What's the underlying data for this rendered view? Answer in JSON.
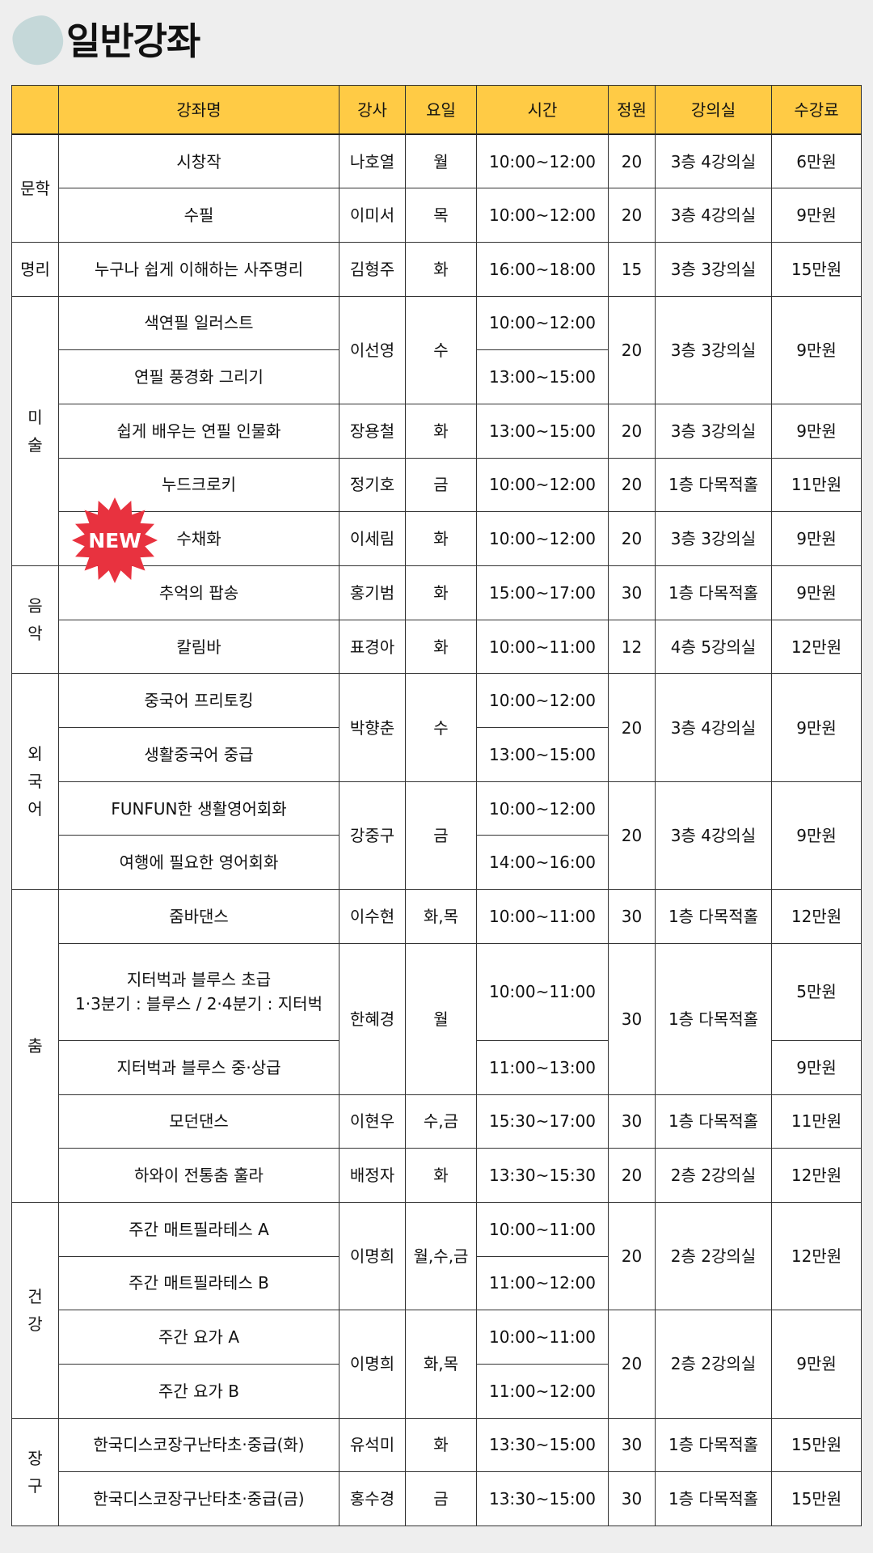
{
  "page": {
    "title": "일반강좌",
    "title_blob_color": "#c5d8d9",
    "header_color": "#ffcb45"
  },
  "badge": {
    "label": "NEW",
    "color": "#e8323f",
    "icon": "starburst-new-badge"
  },
  "table": {
    "headers": [
      "",
      "강좌명",
      "강사",
      "요일",
      "시간",
      "정원",
      "강의실",
      "수강료"
    ],
    "rows": [
      {
        "cells": [
          {
            "text": "문학",
            "rowspan": 2,
            "cat": true
          },
          {
            "text": "시창작"
          },
          {
            "text": "나호열"
          },
          {
            "text": "월"
          },
          {
            "text": "10:00~12:00"
          },
          {
            "text": "20"
          },
          {
            "text": "3층 4강의실"
          },
          {
            "text": "6만원"
          }
        ]
      },
      {
        "cells": [
          {
            "text": "수필"
          },
          {
            "text": "이미서"
          },
          {
            "text": "목"
          },
          {
            "text": "10:00~12:00"
          },
          {
            "text": "20"
          },
          {
            "text": "3층 4강의실"
          },
          {
            "text": "9만원"
          }
        ]
      },
      {
        "cells": [
          {
            "text": "명리",
            "cat": true
          },
          {
            "text": "누구나 쉽게 이해하는 사주명리"
          },
          {
            "text": "김형주"
          },
          {
            "text": "화"
          },
          {
            "text": "16:00~18:00"
          },
          {
            "text": "15"
          },
          {
            "text": "3층 3강의실"
          },
          {
            "text": "15만원"
          }
        ]
      },
      {
        "cells": [
          {
            "text": "미\n술",
            "rowspan": 5,
            "cat": true
          },
          {
            "text": "색연필 일러스트"
          },
          {
            "text": "이선영",
            "rowspan": 2
          },
          {
            "text": "수",
            "rowspan": 2
          },
          {
            "text": "10:00~12:00"
          },
          {
            "text": "20",
            "rowspan": 2
          },
          {
            "text": "3층 3강의실",
            "rowspan": 2
          },
          {
            "text": "9만원",
            "rowspan": 2
          }
        ]
      },
      {
        "cells": [
          {
            "text": "연필 풍경화 그리기"
          },
          {
            "text": "13:00~15:00"
          }
        ]
      },
      {
        "cells": [
          {
            "text": "쉽게 배우는 연필 인물화"
          },
          {
            "text": "장용철"
          },
          {
            "text": "화"
          },
          {
            "text": "13:00~15:00"
          },
          {
            "text": "20"
          },
          {
            "text": "3층 3강의실"
          },
          {
            "text": "9만원"
          }
        ]
      },
      {
        "cells": [
          {
            "text": "누드크로키"
          },
          {
            "text": "정기호"
          },
          {
            "text": "금"
          },
          {
            "text": "10:00~12:00"
          },
          {
            "text": "20"
          },
          {
            "text": "1층 다목적홀"
          },
          {
            "text": "11만원"
          }
        ]
      },
      {
        "cells": [
          {
            "text": "수채화"
          },
          {
            "text": "이세림"
          },
          {
            "text": "화"
          },
          {
            "text": "10:00~12:00"
          },
          {
            "text": "20"
          },
          {
            "text": "3층 3강의실"
          },
          {
            "text": "9만원"
          }
        ]
      },
      {
        "cells": [
          {
            "text": "음\n악",
            "rowspan": 2,
            "cat": true
          },
          {
            "text": "추억의 팝송"
          },
          {
            "text": "홍기범"
          },
          {
            "text": "화"
          },
          {
            "text": "15:00~17:00"
          },
          {
            "text": "30"
          },
          {
            "text": "1층 다목적홀"
          },
          {
            "text": "9만원"
          }
        ]
      },
      {
        "cells": [
          {
            "text": "칼림바"
          },
          {
            "text": "표경아"
          },
          {
            "text": "화"
          },
          {
            "text": "10:00~11:00"
          },
          {
            "text": "12"
          },
          {
            "text": "4층 5강의실"
          },
          {
            "text": "12만원"
          }
        ]
      },
      {
        "cells": [
          {
            "text": "외\n국\n어",
            "rowspan": 4,
            "cat": true
          },
          {
            "text": "중국어 프리토킹"
          },
          {
            "text": "박향춘",
            "rowspan": 2
          },
          {
            "text": "수",
            "rowspan": 2
          },
          {
            "text": "10:00~12:00"
          },
          {
            "text": "20",
            "rowspan": 2
          },
          {
            "text": "3층 4강의실",
            "rowspan": 2
          },
          {
            "text": "9만원",
            "rowspan": 2
          }
        ]
      },
      {
        "cells": [
          {
            "text": "생활중국어 중급"
          },
          {
            "text": "13:00~15:00"
          }
        ]
      },
      {
        "cells": [
          {
            "text": "FUNFUN한 생활영어회화"
          },
          {
            "text": "강중구",
            "rowspan": 2
          },
          {
            "text": "금",
            "rowspan": 2
          },
          {
            "text": "10:00~12:00"
          },
          {
            "text": "20",
            "rowspan": 2
          },
          {
            "text": "3층 4강의실",
            "rowspan": 2
          },
          {
            "text": "9만원",
            "rowspan": 2
          }
        ]
      },
      {
        "cells": [
          {
            "text": "여행에 필요한 영어회화"
          },
          {
            "text": "14:00~16:00"
          }
        ]
      },
      {
        "cells": [
          {
            "text": "춤",
            "rowspan": 5,
            "cat": true
          },
          {
            "text": "줌바댄스"
          },
          {
            "text": "이수현"
          },
          {
            "text": "화,목"
          },
          {
            "text": "10:00~11:00"
          },
          {
            "text": "30"
          },
          {
            "text": "1층 다목적홀"
          },
          {
            "text": "12만원"
          }
        ]
      },
      {
        "tall": true,
        "cells": [
          {
            "text": "지터벅과 블루스 초급\n1·3분기 : 블루스 / 2·4분기 : 지터벅"
          },
          {
            "text": "한혜경",
            "rowspan": 2
          },
          {
            "text": "월",
            "rowspan": 2
          },
          {
            "text": "10:00~11:00"
          },
          {
            "text": "30",
            "rowspan": 2
          },
          {
            "text": "1층 다목적홀",
            "rowspan": 2
          },
          {
            "text": "5만원"
          }
        ]
      },
      {
        "cells": [
          {
            "text": "지터벅과  블루스 중·상급"
          },
          {
            "text": "11:00~13:00"
          },
          {
            "text": "9만원"
          }
        ]
      },
      {
        "cells": [
          {
            "text": "모던댄스"
          },
          {
            "text": "이현우"
          },
          {
            "text": "수,금"
          },
          {
            "text": "15:30~17:00"
          },
          {
            "text": "30"
          },
          {
            "text": "1층 다목적홀"
          },
          {
            "text": "11만원"
          }
        ]
      },
      {
        "cells": [
          {
            "text": "하와이 전통춤 훌라"
          },
          {
            "text": "배정자"
          },
          {
            "text": "화"
          },
          {
            "text": "13:30~15:30"
          },
          {
            "text": "20"
          },
          {
            "text": "2층 2강의실"
          },
          {
            "text": "12만원"
          }
        ]
      },
      {
        "cells": [
          {
            "text": "건\n강",
            "rowspan": 4,
            "cat": true
          },
          {
            "text": "주간 매트필라테스 A"
          },
          {
            "text": "이명희",
            "rowspan": 2
          },
          {
            "text": "월,수,금",
            "rowspan": 2
          },
          {
            "text": "10:00~11:00"
          },
          {
            "text": "20",
            "rowspan": 2
          },
          {
            "text": "2층 2강의실",
            "rowspan": 2
          },
          {
            "text": "12만원",
            "rowspan": 2
          }
        ]
      },
      {
        "cells": [
          {
            "text": "주간 매트필라테스 B"
          },
          {
            "text": "11:00~12:00"
          }
        ]
      },
      {
        "cells": [
          {
            "text": "주간 요가 A"
          },
          {
            "text": "이명희",
            "rowspan": 2
          },
          {
            "text": "화,목",
            "rowspan": 2
          },
          {
            "text": "10:00~11:00"
          },
          {
            "text": "20",
            "rowspan": 2
          },
          {
            "text": "2층 2강의실",
            "rowspan": 2
          },
          {
            "text": "9만원",
            "rowspan": 2
          }
        ]
      },
      {
        "cells": [
          {
            "text": "주간 요가 B"
          },
          {
            "text": "11:00~12:00"
          }
        ]
      },
      {
        "cells": [
          {
            "text": "장\n구",
            "rowspan": 2,
            "cat": true
          },
          {
            "text": "한국디스코장구난타초·중급(화)"
          },
          {
            "text": "유석미"
          },
          {
            "text": "화"
          },
          {
            "text": "13:30~15:00"
          },
          {
            "text": "30"
          },
          {
            "text": "1층 다목적홀"
          },
          {
            "text": "15만원"
          }
        ]
      },
      {
        "cells": [
          {
            "text": "한국디스코장구난타초·중급(금)"
          },
          {
            "text": "홍수경"
          },
          {
            "text": "금"
          },
          {
            "text": "13:30~15:00"
          },
          {
            "text": "30"
          },
          {
            "text": "1층 다목적홀"
          },
          {
            "text": "15만원"
          }
        ]
      }
    ]
  }
}
